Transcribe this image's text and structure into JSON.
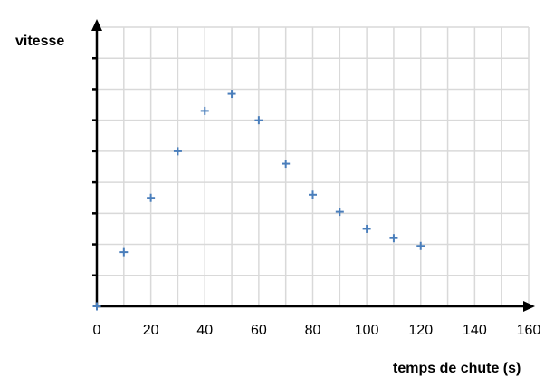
{
  "chart_data": {
    "type": "scatter",
    "title": "",
    "xlabel": "temps de chute (s)",
    "ylabel": "vitesse",
    "xlim": [
      0,
      160
    ],
    "ylim": [
      0,
      9
    ],
    "x_ticks": [
      "0",
      "20",
      "40",
      "60",
      "80",
      "100",
      "120",
      "140",
      "160"
    ],
    "y_ticks_labeled": false,
    "grid": true,
    "legend": "none",
    "marker": "plus",
    "color": "#4a7ebb",
    "series": [
      {
        "x": [
          0,
          10,
          20,
          30,
          40,
          50,
          60,
          70,
          80,
          90,
          100,
          110,
          120
        ],
        "y": [
          0,
          1.75,
          3.5,
          5.0,
          6.3,
          6.85,
          6.0,
          4.6,
          3.6,
          3.05,
          2.5,
          2.2,
          1.95
        ]
      }
    ]
  }
}
